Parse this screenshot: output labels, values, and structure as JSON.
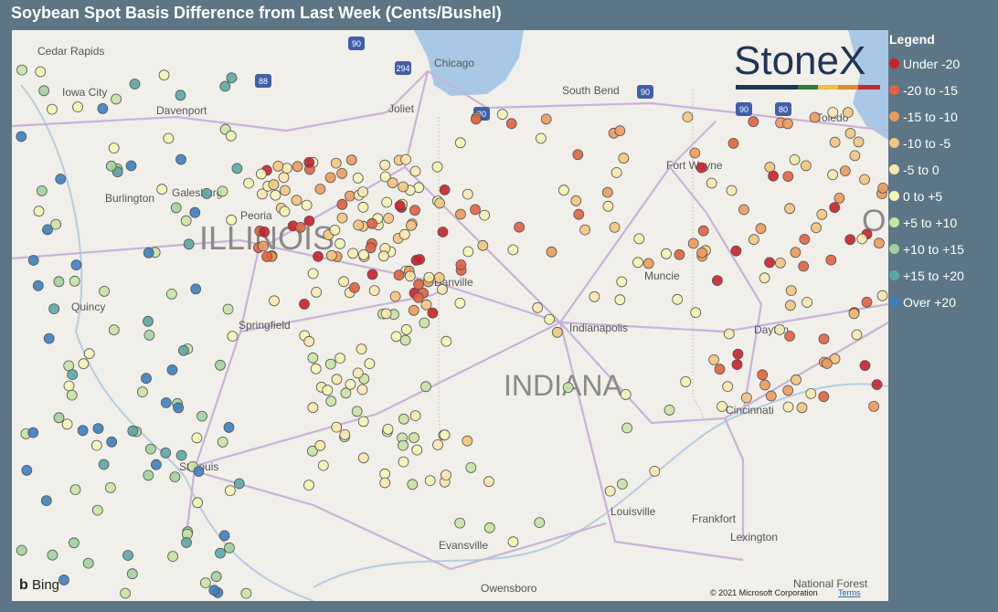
{
  "header": {
    "title": "Soybean Spot Basis Difference from Last Week (Cents/Bushel)"
  },
  "legend": {
    "title": "Legend",
    "items": [
      {
        "label": "Under -20",
        "color": "#cc1f2a"
      },
      {
        "label": "-20 to -15",
        "color": "#e2613e"
      },
      {
        "label": "-15 to -10",
        "color": "#ee9a5a"
      },
      {
        "label": "-10 to -5",
        "color": "#f4c57c"
      },
      {
        "label": "-5 to 0",
        "color": "#f9e8ad"
      },
      {
        "label": "0 to +5",
        "color": "#f3f5b4"
      },
      {
        "label": "+5 to +10",
        "color": "#c9e3a2"
      },
      {
        "label": "+10 to +15",
        "color": "#a2d29c"
      },
      {
        "label": "+15 to +20",
        "color": "#5aa7a6"
      },
      {
        "label": "Over +20",
        "color": "#3b7fc2"
      }
    ]
  },
  "logo": "StoneX",
  "map": {
    "places": [
      "Cedar Rapids",
      "Iowa City",
      "Davenport",
      "Chicago",
      "South Bend",
      "Joliet",
      "Fort Wayne",
      "Toledo",
      "Galesburg",
      "Peoria",
      "Burlington",
      "Quincy",
      "Springfield",
      "Danville",
      "Muncie",
      "Indianapolis",
      "Dayton",
      "Cincinnati",
      "St Louis",
      "Evansville",
      "Louisville",
      "Frankfort",
      "Lexington",
      "Owensboro",
      "National Forest"
    ],
    "states": [
      "ILLINOIS",
      "INDIANA",
      "O"
    ],
    "shields": [
      "90",
      "294",
      "88",
      "80",
      "90",
      "90",
      "80"
    ]
  },
  "footer": {
    "provider": "Bing",
    "copyright": "© 2021 Microsoft Corporation",
    "terms": "Terms"
  }
}
